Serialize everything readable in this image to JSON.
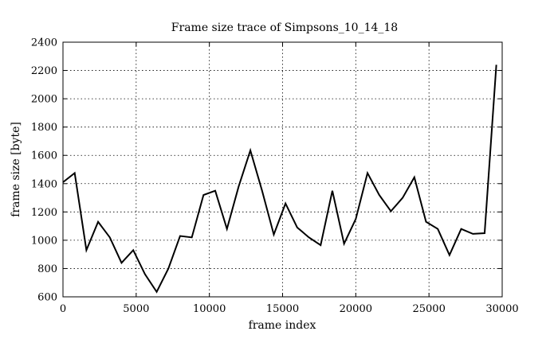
{
  "chart_data": {
    "type": "line",
    "title": "Frame size trace of Simpsons_10_14_18",
    "xlabel": "frame index",
    "ylabel": "frame size [byte]",
    "xlim": [
      0,
      30000
    ],
    "ylim": [
      600,
      2400
    ],
    "xticks": [
      0,
      5000,
      10000,
      15000,
      20000,
      25000,
      30000
    ],
    "yticks": [
      600,
      800,
      1000,
      1200,
      1400,
      1600,
      1800,
      2000,
      2200,
      2400
    ],
    "grid": true,
    "series": [
      {
        "x": [
          0,
          800,
          1600,
          2400,
          3200,
          4000,
          4800,
          5600,
          6400,
          7200,
          8000,
          8800,
          9600,
          10400,
          11200,
          12000,
          12800,
          13600,
          14400,
          15200,
          16000,
          16800,
          17600,
          18400,
          19200,
          20000,
          20800,
          21600,
          22400,
          23200,
          24000,
          24800,
          25600,
          26400,
          27200,
          28000,
          28800,
          29600
        ],
        "y": [
          1410,
          1475,
          930,
          1130,
          1020,
          840,
          930,
          760,
          635,
          800,
          1030,
          1020,
          1320,
          1350,
          1080,
          1380,
          1635,
          1350,
          1040,
          1260,
          1090,
          1020,
          965,
          1350,
          975,
          1150,
          1475,
          1320,
          1205,
          1300,
          1445,
          1130,
          1080,
          895,
          1080,
          1045,
          1050,
          2240
        ]
      }
    ]
  }
}
